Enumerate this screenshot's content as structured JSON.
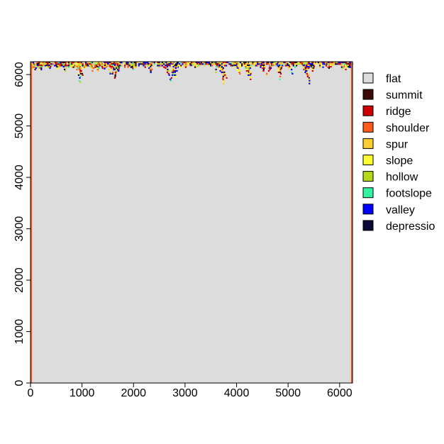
{
  "chart_data": {
    "type": "heatmap",
    "title": "",
    "xlabel": "",
    "ylabel": "",
    "xlim": [
      0,
      6250
    ],
    "ylim": [
      0,
      6250
    ],
    "x_ticks": [
      {
        "value": 0,
        "label": "0"
      },
      {
        "value": 1000,
        "label": "1000"
      },
      {
        "value": 2000,
        "label": "2000"
      },
      {
        "value": 3000,
        "label": "3000"
      },
      {
        "value": 4000,
        "label": "4000"
      },
      {
        "value": 5000,
        "label": "5000"
      },
      {
        "value": 6000,
        "label": "6000"
      }
    ],
    "y_ticks": [
      {
        "value": 0,
        "label": "0"
      },
      {
        "value": 1000,
        "label": "1000"
      },
      {
        "value": 2000,
        "label": "2000"
      },
      {
        "value": 3000,
        "label": "3000"
      },
      {
        "value": 4000,
        "label": "4000"
      },
      {
        "value": 5000,
        "label": "5000"
      },
      {
        "value": 6000,
        "label": "6000"
      }
    ],
    "background_class": "flat",
    "legend_position": "right",
    "classes": [
      {
        "name": "flat",
        "label": "flat",
        "color": "#dcdcdc"
      },
      {
        "name": "summit",
        "label": "summit",
        "color": "#3d0a0a"
      },
      {
        "name": "ridge",
        "label": "ridge",
        "color": "#cc0000"
      },
      {
        "name": "shoulder",
        "label": "shoulder",
        "color": "#ff5a1a"
      },
      {
        "name": "spur",
        "label": "spur",
        "color": "#ffcc33"
      },
      {
        "name": "slope",
        "label": "slope",
        "color": "#ffff33"
      },
      {
        "name": "hollow",
        "label": "hollow",
        "color": "#b3d91a"
      },
      {
        "name": "footslope",
        "label": "footslope",
        "color": "#33f2a0"
      },
      {
        "name": "valley",
        "label": "valley",
        "color": "#0000ff"
      },
      {
        "name": "depression",
        "label": "depressio",
        "color": "#0a0a33"
      }
    ],
    "features": [
      {
        "x": 6250,
        "y": 6250,
        "depth": 270,
        "peak_x": 6200
      },
      {
        "x": 100,
        "y": 6250,
        "depth": 130
      },
      {
        "x": 200,
        "y": 6250,
        "depth": 210
      },
      {
        "x": 350,
        "y": 6250,
        "depth": 130
      },
      {
        "x": 550,
        "y": 6250,
        "depth": 170
      },
      {
        "x": 880,
        "y": 6250,
        "depth": 390
      },
      {
        "x": 1100,
        "y": 6250,
        "depth": 210
      },
      {
        "x": 1300,
        "y": 6250,
        "depth": 170
      },
      {
        "x": 1580,
        "y": 6250,
        "depth": 230
      },
      {
        "x": 1720,
        "y": 6250,
        "depth": 330
      },
      {
        "x": 2050,
        "y": 6250,
        "depth": 170
      },
      {
        "x": 2350,
        "y": 6250,
        "depth": 210
      },
      {
        "x": 2650,
        "y": 6250,
        "depth": 250
      },
      {
        "x": 2780,
        "y": 6250,
        "depth": 370
      },
      {
        "x": 3150,
        "y": 6250,
        "depth": 130
      },
      {
        "x": 3650,
        "y": 6250,
        "depth": 430
      },
      {
        "x": 3900,
        "y": 6250,
        "depth": 250
      },
      {
        "x": 4150,
        "y": 6250,
        "depth": 350
      },
      {
        "x": 4450,
        "y": 6250,
        "depth": 170
      },
      {
        "x": 4780,
        "y": 6250,
        "depth": 350
      },
      {
        "x": 5000,
        "y": 6250,
        "depth": 230
      },
      {
        "x": 5300,
        "y": 6250,
        "depth": 410
      },
      {
        "x": 5500,
        "y": 6250,
        "depth": 170
      },
      {
        "x": 5800,
        "y": 6250,
        "depth": 130
      },
      {
        "x": 6100,
        "y": 6250,
        "depth": 170
      }
    ]
  }
}
